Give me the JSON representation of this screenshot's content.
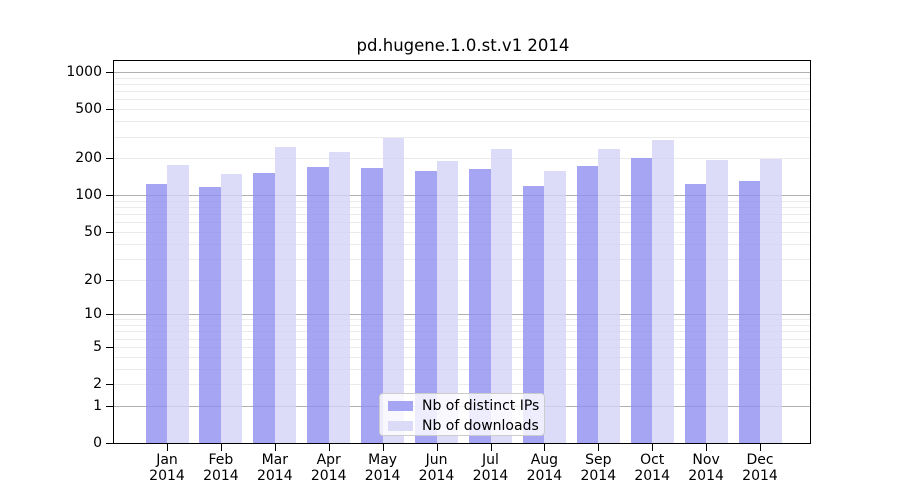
{
  "title": "pd.hugene.1.0.st.v1 2014",
  "colors": {
    "distinct_ips_bar": "rgba(143,143,240,0.8)",
    "downloads_bar": "rgba(211,211,247,0.8)",
    "distinct_ips_solid": "#a5a5f3",
    "downloads_solid": "#dbdbf8",
    "major_grid": "#b0b0b0",
    "minor_grid": "#ebebeb",
    "axis": "#000000"
  },
  "legend": {
    "items": [
      {
        "label": "Nb of distinct IPs",
        "series_key": "distinct_ips"
      },
      {
        "label": "Nb of downloads",
        "series_key": "downloads"
      }
    ]
  },
  "y_axis": {
    "tick_values": [
      1000,
      500,
      200,
      100,
      50,
      20,
      10,
      5,
      2,
      1,
      0
    ],
    "tick_labels": [
      "1000",
      "500",
      "200",
      "100",
      "50",
      "20",
      "10",
      "5",
      "2",
      "1",
      "0"
    ]
  },
  "x_axis": {
    "tick_labels": [
      [
        "Jan",
        "2014"
      ],
      [
        "Feb",
        "2014"
      ],
      [
        "Mar",
        "2014"
      ],
      [
        "Apr",
        "2014"
      ],
      [
        "May",
        "2014"
      ],
      [
        "Jun",
        "2014"
      ],
      [
        "Jul",
        "2014"
      ],
      [
        "Aug",
        "2014"
      ],
      [
        "Sep",
        "2014"
      ],
      [
        "Oct",
        "2014"
      ],
      [
        "Nov",
        "2014"
      ],
      [
        "Dec",
        "2014"
      ]
    ]
  },
  "chart_data": {
    "type": "bar",
    "title": "pd.hugene.1.0.st.v1 2014",
    "categories": [
      "Jan 2014",
      "Feb 2014",
      "Mar 2014",
      "Apr 2014",
      "May 2014",
      "Jun 2014",
      "Jul 2014",
      "Aug 2014",
      "Sep 2014",
      "Oct 2014",
      "Nov 2014",
      "Dec 2014"
    ],
    "series": [
      {
        "name": "Nb of distinct IPs",
        "values": [
          123,
          117,
          152,
          169,
          167,
          158,
          163,
          119,
          173,
          200,
          123,
          131
        ]
      },
      {
        "name": "Nb of downloads",
        "values": [
          176,
          149,
          248,
          223,
          292,
          190,
          236,
          157,
          239,
          283,
          192,
          198
        ]
      }
    ],
    "yscale": "log10(value+1), labeled ticks 0,1,2,5,10,20,50,100,200,500,1000",
    "ylim": [
      0,
      1228
    ],
    "xlabel": "",
    "ylabel": "",
    "grid": true,
    "legend_position": "lower center"
  }
}
